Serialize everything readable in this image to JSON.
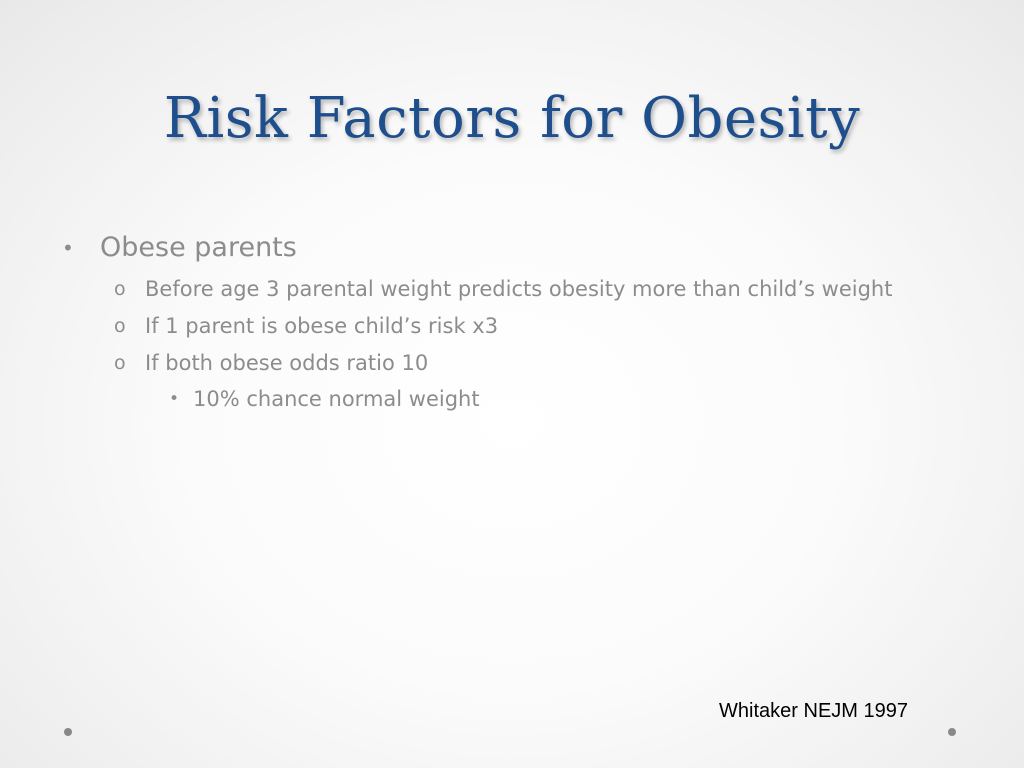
{
  "slide": {
    "title": "Risk Factors for Obesity",
    "bullets": [
      {
        "marker": "•",
        "text": "Obese parents",
        "children": [
          {
            "marker": "o",
            "text": "Before age 3 parental weight predicts obesity more than child’s weight",
            "children": []
          },
          {
            "marker": "o",
            "text": "If 1 parent is obese child’s risk x3",
            "children": []
          },
          {
            "marker": "o",
            "text": "If both obese odds ratio 10",
            "children": [
              {
                "marker": "•",
                "text": "10% chance normal weight"
              }
            ]
          }
        ]
      }
    ],
    "citation": "Whitaker NEJM 1997"
  }
}
